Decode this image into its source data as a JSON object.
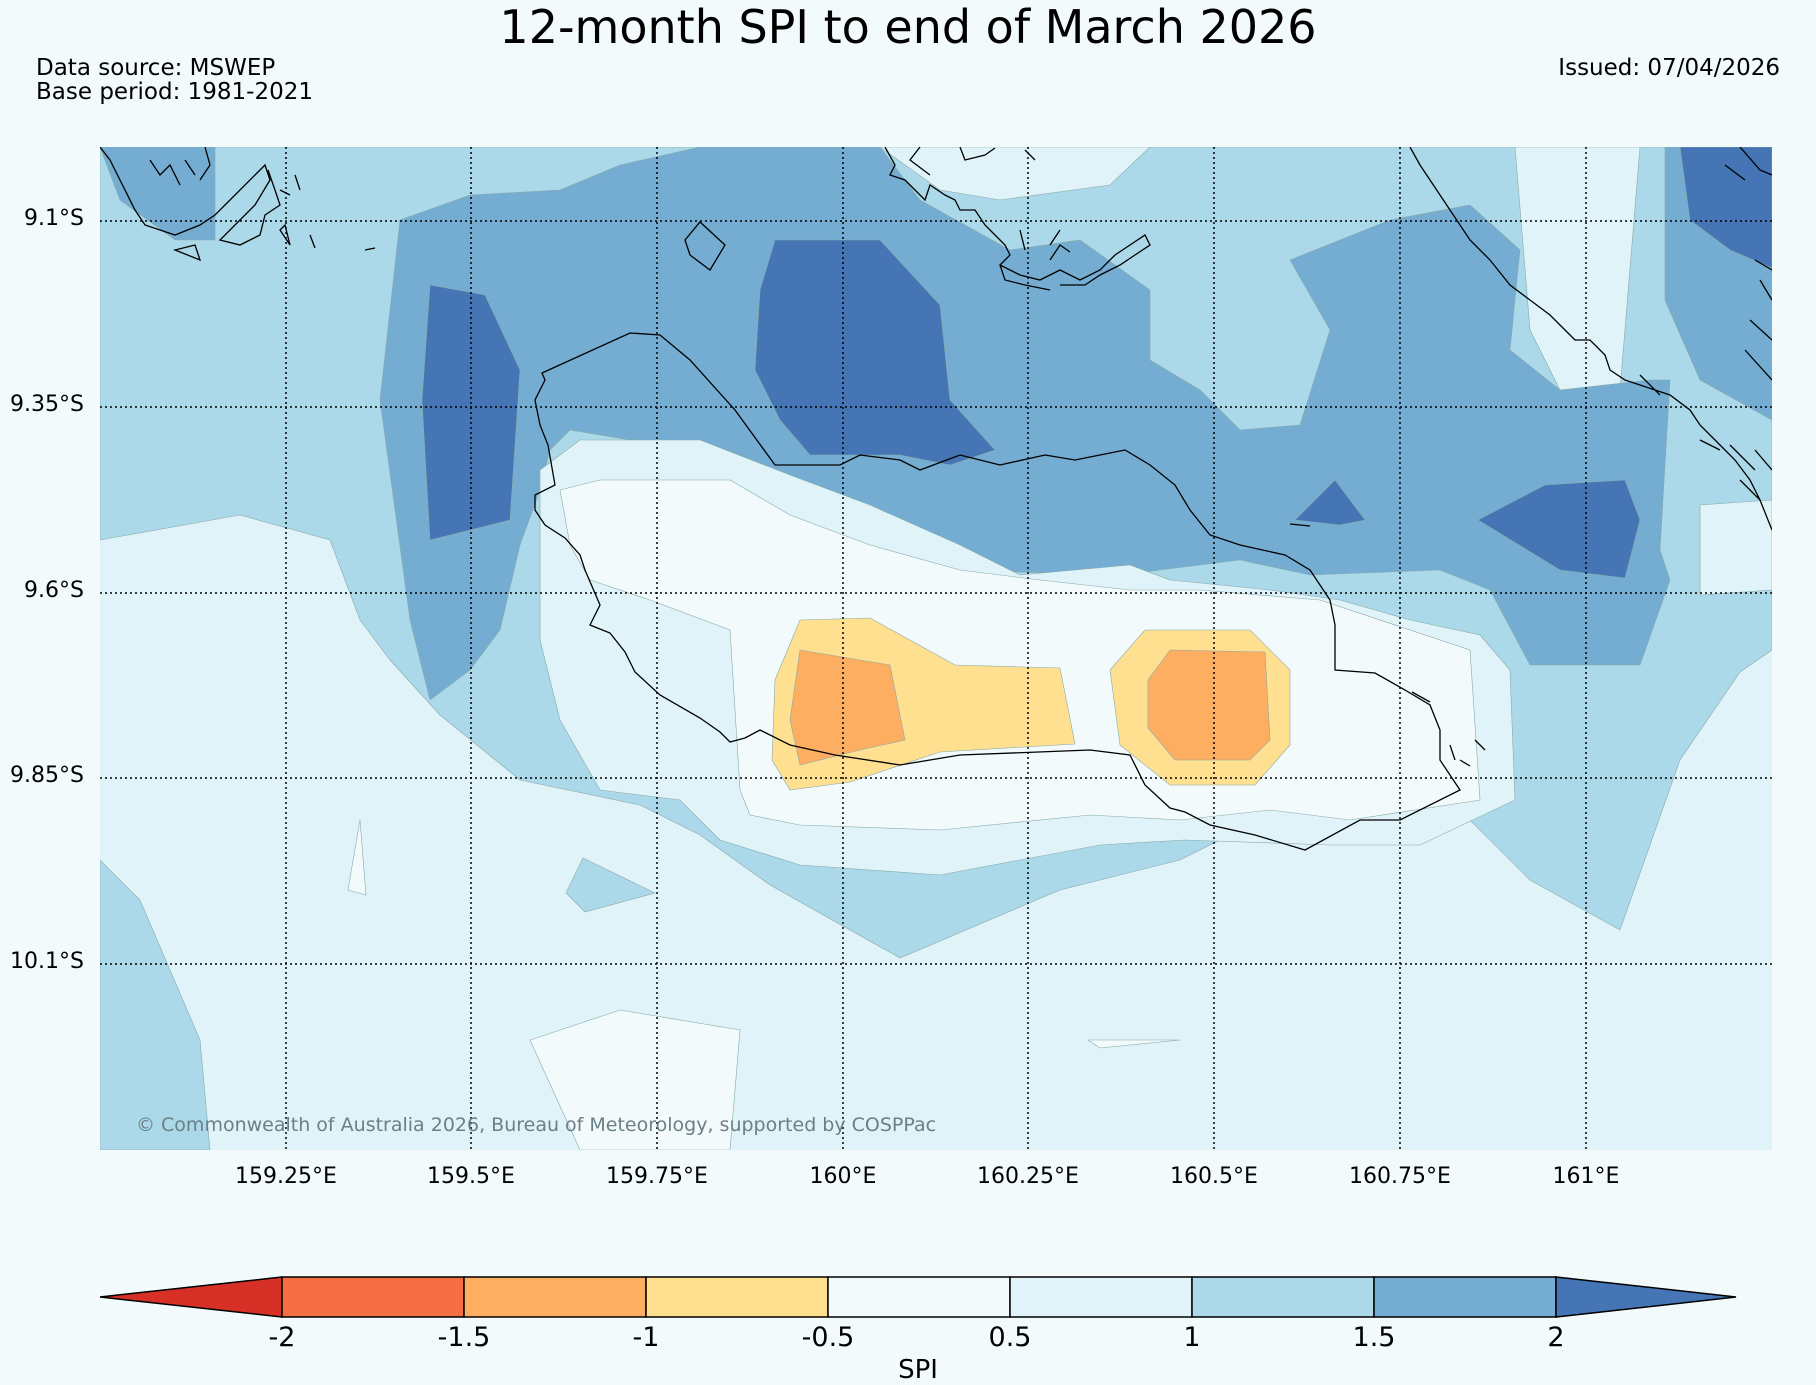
{
  "title": "12-month SPI to end of March 2026",
  "data_source": "Data source: MSWEP",
  "base_period": "Base period: 1981-2021",
  "issued": "Issued: 07/04/2026",
  "copyright": "© Commonwealth of Australia 2026, Bureau of Meteorology, supported by COSPPac",
  "lat_ticks": [
    "9.1°S",
    "9.35°S",
    "9.6°S",
    "9.85°S",
    "10.1°S"
  ],
  "lon_ticks": [
    "159.25°E",
    "159.5°E",
    "159.75°E",
    "160°E",
    "160.25°E",
    "160.5°E",
    "160.75°E",
    "161°E"
  ],
  "colorbar": {
    "title": "SPI",
    "labels": [
      "-2",
      "-1.5",
      "-1",
      "-0.5",
      "0.5",
      "1",
      "1.5",
      "2"
    ],
    "colors": [
      "#d73027",
      "#f46d43",
      "#fdae61",
      "#fee090",
      "#f2fafc",
      "#e0f3f8",
      "#abd9e9",
      "#74add1",
      "#4575b4"
    ]
  },
  "spi_colors": {
    "very_wet": "#4575b4",
    "wet": "#74add1",
    "moderately_wet": "#abd9e9",
    "slightly_wet": "#e0f3f8",
    "near_normal": "#f2fafc",
    "slightly_dry": "#fee090",
    "moderately_dry": "#fdae61"
  }
}
